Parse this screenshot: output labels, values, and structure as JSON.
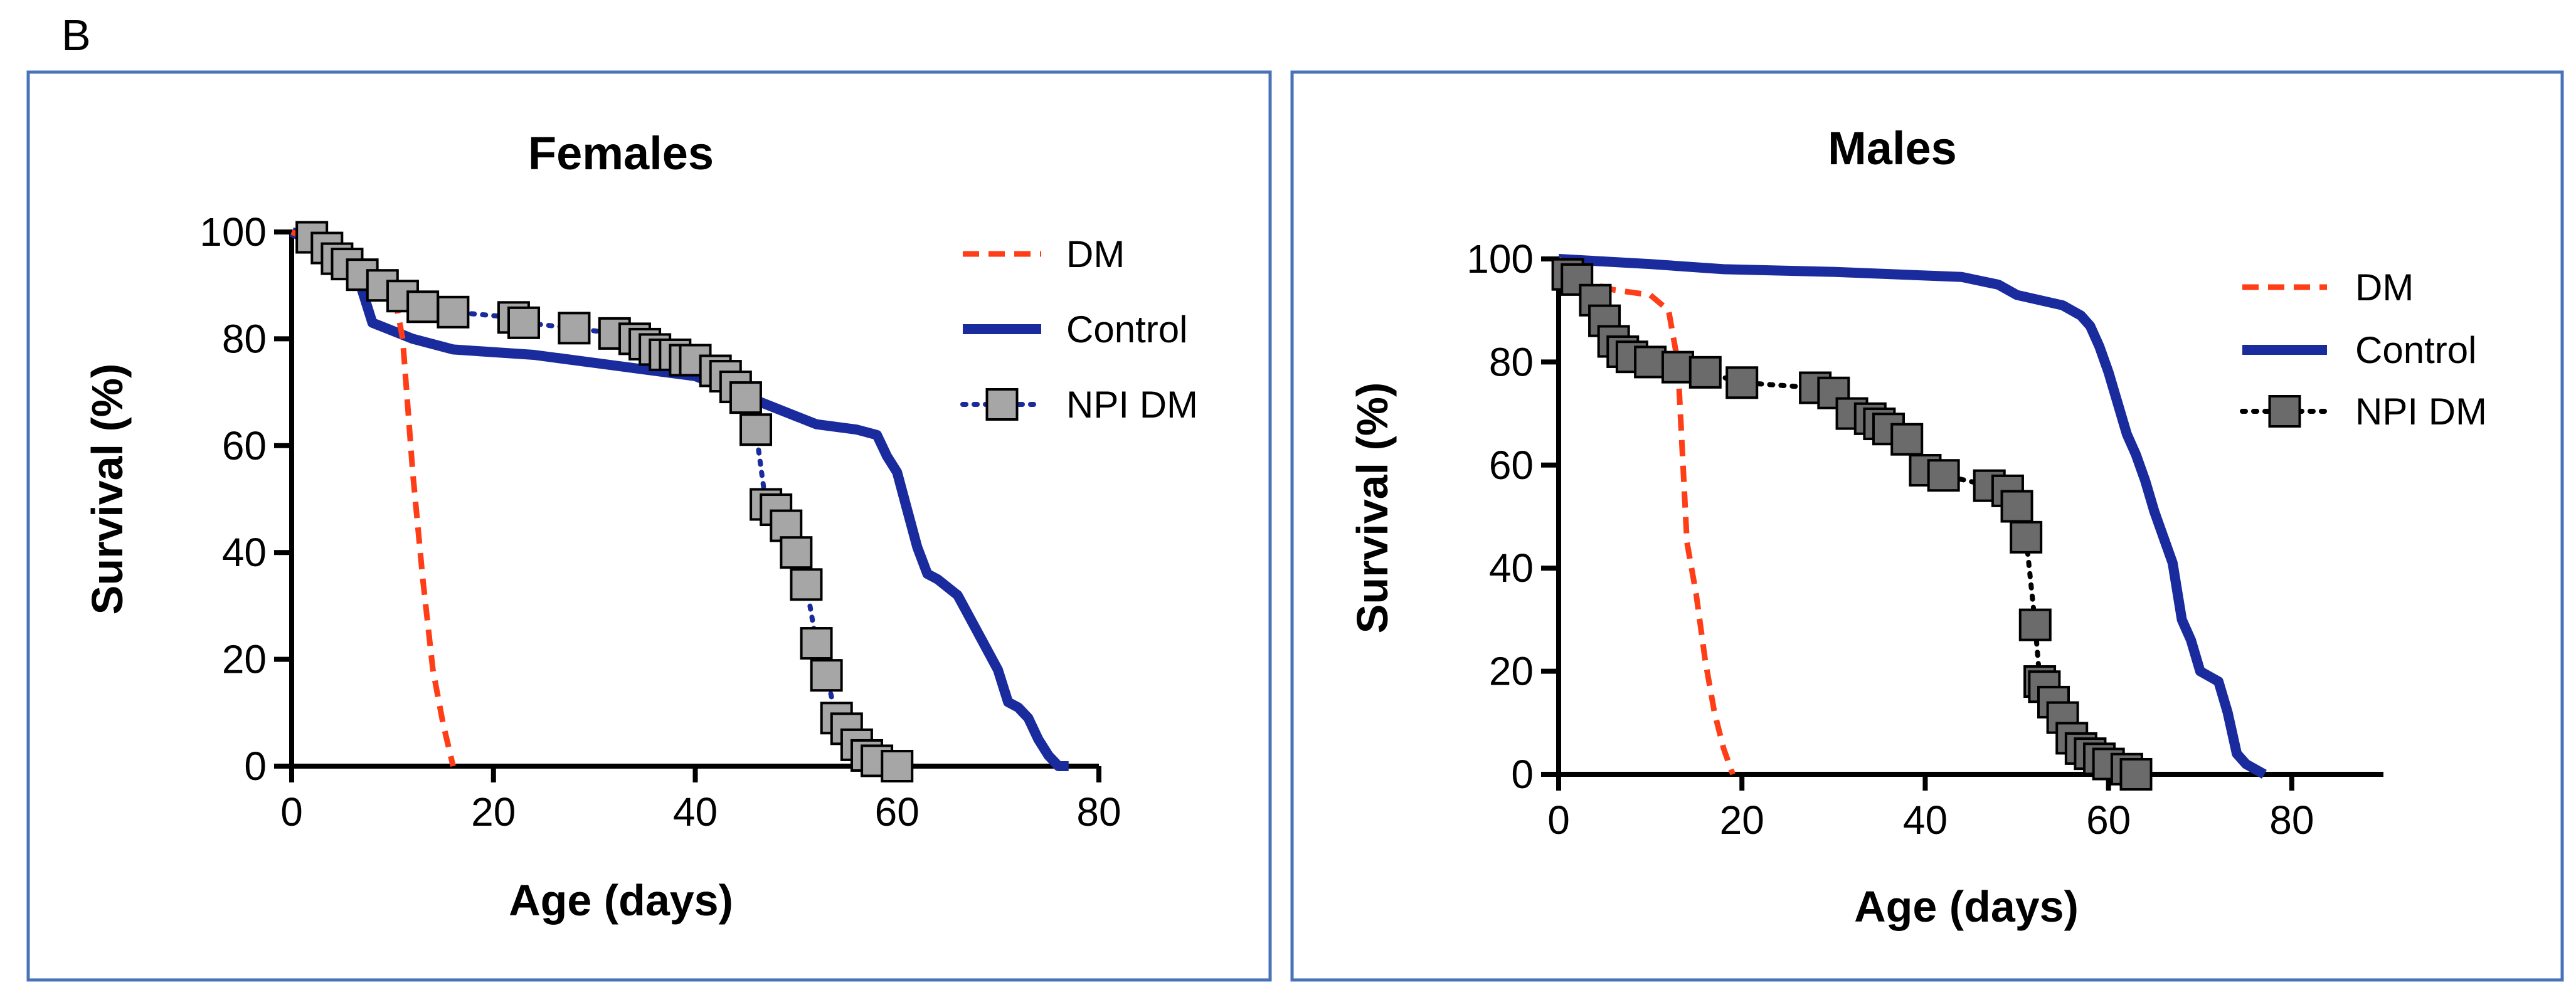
{
  "panel_label": "B",
  "chart_data": [
    {
      "type": "line",
      "title": "Females",
      "xlabel": "Age (days)",
      "ylabel": "Survival (%)",
      "xlim": [
        0,
        80
      ],
      "ylim": [
        0,
        100
      ],
      "xticks": [
        0,
        20,
        40,
        60,
        80
      ],
      "yticks": [
        0,
        20,
        40,
        60,
        80,
        100
      ],
      "legend_position": "top-right",
      "series": [
        {
          "name": "DM",
          "color": "#ff3d17",
          "style": "dashed",
          "x": [
            0,
            5,
            8,
            10,
            11,
            12,
            13,
            14,
            15,
            16
          ],
          "y": [
            100,
            96,
            94,
            90,
            80,
            55,
            35,
            18,
            8,
            0
          ]
        },
        {
          "name": "Control",
          "color": "#1a2b9e",
          "style": "solid",
          "x": [
            0,
            6,
            8,
            12,
            16,
            24,
            32,
            40,
            44,
            48,
            52,
            56,
            58,
            59,
            60,
            61,
            62,
            63,
            64,
            66,
            68,
            70,
            71,
            72,
            73,
            74,
            75,
            76,
            77
          ],
          "y": [
            100,
            95,
            83,
            80,
            78,
            77,
            75,
            73,
            70,
            67,
            64,
            63,
            62,
            58,
            55,
            48,
            41,
            36,
            35,
            32,
            25,
            18,
            12,
            11,
            9,
            5,
            2,
            0,
            0
          ]
        },
        {
          "name": "NPI DM",
          "color": "#1a2b9e",
          "style": "dotted-markers",
          "marker_fill": "#a6a6a6",
          "x": [
            2,
            3.5,
            4.5,
            5.5,
            7,
            9,
            11,
            13,
            16,
            22,
            23,
            28,
            32,
            34,
            35,
            36,
            37,
            38,
            39,
            40,
            42,
            43,
            44,
            45,
            46,
            47,
            48,
            49,
            50,
            51,
            52,
            53,
            54,
            55,
            56,
            57,
            58,
            60
          ],
          "y": [
            99,
            97,
            95,
            94,
            92,
            90,
            88,
            86,
            85,
            84,
            83,
            82,
            81,
            80,
            79,
            78,
            77,
            77,
            76,
            76,
            74,
            73,
            71,
            69,
            63,
            49,
            48,
            45,
            40,
            34,
            23,
            17,
            9,
            7,
            4,
            2,
            1,
            0
          ]
        }
      ]
    },
    {
      "type": "line",
      "title": "Males",
      "xlabel": "Age (days)",
      "ylabel": "Survival (%)",
      "xlim": [
        0,
        90
      ],
      "ylim": [
        0,
        100
      ],
      "xticks": [
        0,
        20,
        40,
        60,
        80
      ],
      "yticks": [
        0,
        20,
        40,
        60,
        80,
        100
      ],
      "legend_position": "top-right",
      "series": [
        {
          "name": "DM",
          "color": "#ff3d17",
          "style": "dashed",
          "x": [
            0,
            2,
            6,
            10,
            12,
            13,
            14,
            15,
            16,
            17,
            18,
            19
          ],
          "y": [
            100,
            96,
            94,
            93,
            90,
            80,
            45,
            35,
            22,
            12,
            5,
            0
          ]
        },
        {
          "name": "Control",
          "color": "#1a2b9e",
          "style": "solid",
          "x": [
            0,
            10,
            18,
            30,
            44,
            48,
            50,
            55,
            57,
            58,
            59,
            60,
            61,
            62,
            63,
            64,
            65,
            66,
            67,
            68,
            69,
            70,
            71,
            72,
            73,
            74,
            75,
            76,
            77
          ],
          "y": [
            100,
            99,
            98,
            97.5,
            96.5,
            95,
            93,
            91,
            89,
            87,
            83,
            78,
            72,
            66,
            62,
            57,
            51,
            46,
            41,
            30,
            26,
            20,
            19,
            18,
            12,
            4,
            2,
            1,
            0
          ]
        },
        {
          "name": "NPI DM",
          "color": "#000000",
          "style": "dotted-markers",
          "marker_fill": "#6b6b6b",
          "x": [
            1,
            2,
            4,
            5,
            6,
            7,
            8,
            10,
            13,
            16,
            20,
            28,
            30,
            32,
            34,
            35,
            36,
            38,
            40,
            42,
            47,
            49,
            50,
            51,
            52,
            52.5,
            53,
            54,
            55,
            56,
            57,
            58,
            59,
            60,
            62,
            63
          ],
          "y": [
            97,
            96,
            92,
            88,
            84,
            82,
            81,
            80,
            79,
            78,
            76,
            75,
            74,
            70,
            69,
            68,
            67,
            65,
            59,
            58,
            56,
            55,
            52,
            46,
            29,
            18,
            17,
            14,
            11,
            7,
            5,
            4,
            3,
            2,
            1,
            0
          ]
        }
      ]
    }
  ]
}
